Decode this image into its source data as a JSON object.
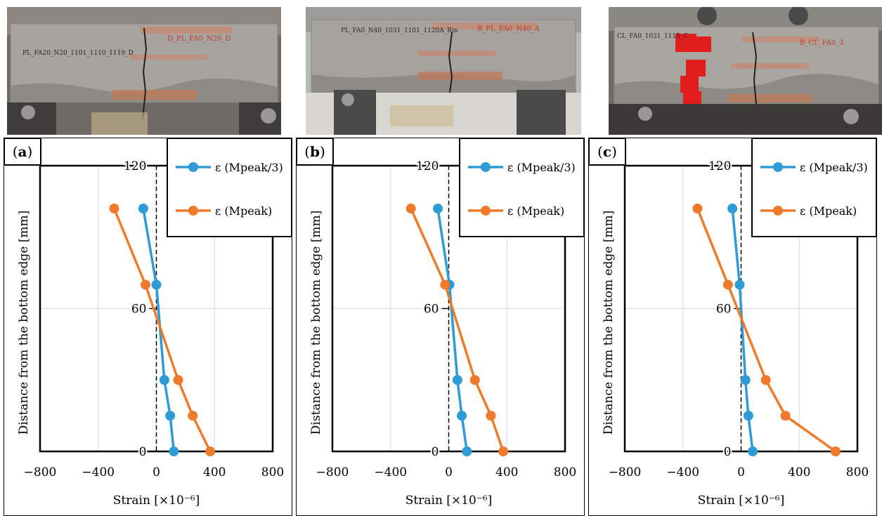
{
  "photos": [
    {
      "label_left": "PL_FA20_N20_1101_1110_1119_D",
      "label_right": "D_PL_FA0_N20_D"
    },
    {
      "label_left": "PL_FA0_N40_1031_1101_1120A_Rin",
      "label_right": "B_PL_FA0_N40_A"
    },
    {
      "label_left": "CL_FA0_1031_1115_C",
      "label_right": "B_CL_FA0_3"
    }
  ],
  "colors": {
    "series_1": "#2e9bd6",
    "series_2": "#f07a2c",
    "grid": "#d9d9d9",
    "axis": "#000000"
  },
  "chart_data": [
    {
      "panel_label": "a",
      "type": "line",
      "xlabel": "Strain [×10⁻⁶]",
      "ylabel": "Distance from the bottom edge [mm]",
      "xlim": [
        -800,
        800
      ],
      "ylim": [
        0,
        120
      ],
      "xticks": [
        -800,
        -400,
        0,
        400,
        800
      ],
      "yticks": [
        0,
        60,
        120
      ],
      "xtick_labels": [
        "−800",
        "−400",
        "0",
        "400",
        "800"
      ],
      "ytick_labels": [
        "0",
        "60",
        "120"
      ],
      "legend_position": "top-right",
      "series": [
        {
          "name": "ε (Mpeak/3)",
          "points": [
            [
              -90,
              102
            ],
            [
              0,
              70
            ],
            [
              55,
              30
            ],
            [
              95,
              15
            ],
            [
              120,
              0
            ]
          ]
        },
        {
          "name": "ε (Mpeak)",
          "points": [
            [
              -290,
              102
            ],
            [
              -75,
              70
            ],
            [
              150,
              30
            ],
            [
              250,
              15
            ],
            [
              370,
              0
            ]
          ]
        }
      ]
    },
    {
      "panel_label": "b",
      "type": "line",
      "xlabel": "Strain [×10⁻⁶]",
      "ylabel": "Distance from the bottom edge [mm]",
      "xlim": [
        -800,
        800
      ],
      "ylim": [
        0,
        120
      ],
      "xticks": [
        -800,
        -400,
        0,
        400,
        800
      ],
      "yticks": [
        0,
        60,
        120
      ],
      "xtick_labels": [
        "−800",
        "−400",
        "0",
        "400",
        "800"
      ],
      "ytick_labels": [
        "0",
        "60",
        "120"
      ],
      "legend_position": "top-right",
      "series": [
        {
          "name": "ε (Mpeak/3)",
          "points": [
            [
              -75,
              102
            ],
            [
              5,
              70
            ],
            [
              60,
              30
            ],
            [
              90,
              15
            ],
            [
              125,
              0
            ]
          ]
        },
        {
          "name": "ε (Mpeak)",
          "points": [
            [
              -260,
              102
            ],
            [
              -25,
              70
            ],
            [
              180,
              30
            ],
            [
              290,
              15
            ],
            [
              375,
              0
            ]
          ]
        }
      ]
    },
    {
      "panel_label": "c",
      "type": "line",
      "xlabel": "Strain [×10⁻⁶]",
      "ylabel": "Distance from the bottom edge [mm]",
      "xlim": [
        -800,
        800
      ],
      "ylim": [
        0,
        120
      ],
      "xticks": [
        -800,
        -400,
        0,
        400,
        800
      ],
      "yticks": [
        0,
        60,
        120
      ],
      "xtick_labels": [
        "−800",
        "−400",
        "0",
        "400",
        "800"
      ],
      "ytick_labels": [
        "0",
        "60",
        "120"
      ],
      "legend_position": "top-right",
      "series": [
        {
          "name": "ε (Mpeak/3)",
          "points": [
            [
              -60,
              102
            ],
            [
              -10,
              70
            ],
            [
              30,
              30
            ],
            [
              50,
              15
            ],
            [
              80,
              0
            ]
          ]
        },
        {
          "name": "ε (Mpeak)",
          "points": [
            [
              -300,
              102
            ],
            [
              -90,
              70
            ],
            [
              170,
              30
            ],
            [
              305,
              15
            ],
            [
              650,
              0
            ]
          ]
        }
      ]
    }
  ]
}
